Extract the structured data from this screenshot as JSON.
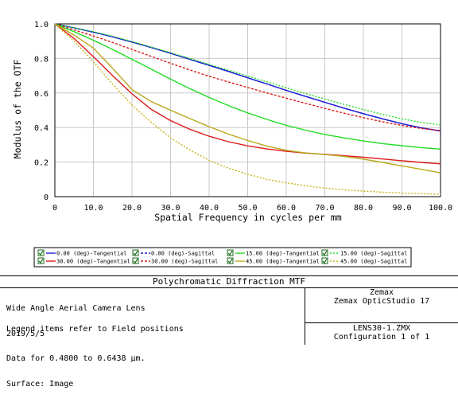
{
  "chart_data": {
    "type": "line",
    "title": "",
    "xlabel": "Spatial Frequency in cycles per mm",
    "ylabel": "Modulus of the OTF",
    "xlim": [
      0,
      100
    ],
    "ylim": [
      0,
      1
    ],
    "x_ticks": [
      "0",
      "10.0",
      "20.0",
      "30.0",
      "40.0",
      "50.0",
      "60.0",
      "70.0",
      "80.0",
      "90.0",
      "100.0"
    ],
    "y_ticks": [
      "0",
      "0.2",
      "0.4",
      "0.6",
      "0.8",
      "1.0"
    ],
    "grid": true,
    "legend_position": "bottom",
    "x": [
      0,
      5,
      10,
      15,
      20,
      25,
      30,
      35,
      40,
      45,
      50,
      55,
      60,
      65,
      70,
      75,
      80,
      85,
      90,
      95,
      100
    ],
    "series": [
      {
        "name": "0.00 (deg)-Tangential",
        "color": "#1a1ad8",
        "dash": "solid",
        "values": [
          1.0,
          0.977,
          0.952,
          0.925,
          0.895,
          0.863,
          0.83,
          0.795,
          0.76,
          0.725,
          0.688,
          0.652,
          0.615,
          0.58,
          0.546,
          0.512,
          0.48,
          0.45,
          0.422,
          0.398,
          0.38
        ]
      },
      {
        "name": "0.00 (deg)-Sagittal",
        "color": "#1a1ad8",
        "dash": "dashed",
        "values": [
          1.0,
          0.977,
          0.952,
          0.925,
          0.895,
          0.863,
          0.83,
          0.795,
          0.76,
          0.725,
          0.688,
          0.652,
          0.615,
          0.58,
          0.546,
          0.512,
          0.48,
          0.45,
          0.422,
          0.398,
          0.38
        ]
      },
      {
        "name": "15.00 (deg)-Tangential",
        "color": "#22dd22",
        "dash": "solid",
        "values": [
          1.0,
          0.955,
          0.905,
          0.852,
          0.795,
          0.738,
          0.68,
          0.625,
          0.574,
          0.527,
          0.485,
          0.447,
          0.413,
          0.385,
          0.36,
          0.34,
          0.322,
          0.307,
          0.295,
          0.284,
          0.275
        ]
      },
      {
        "name": "15.00 (deg)-Sagittal",
        "color": "#22dd22",
        "dash": "dotted",
        "values": [
          1.0,
          0.978,
          0.955,
          0.928,
          0.898,
          0.866,
          0.833,
          0.8,
          0.766,
          0.732,
          0.698,
          0.664,
          0.63,
          0.597,
          0.565,
          0.534,
          0.504,
          0.476,
          0.45,
          0.43,
          0.415
        ]
      },
      {
        "name": "30.00 (deg)-Tangential",
        "color": "#dd1a1a",
        "dash": "solid",
        "values": [
          1.0,
          0.915,
          0.81,
          0.7,
          0.595,
          0.505,
          0.44,
          0.39,
          0.35,
          0.318,
          0.294,
          0.276,
          0.262,
          0.252,
          0.245,
          0.237,
          0.228,
          0.218,
          0.208,
          0.198,
          0.19
        ]
      },
      {
        "name": "30.00 (deg)-Sagittal",
        "color": "#dd1a1a",
        "dash": "dashed",
        "values": [
          1.0,
          0.965,
          0.93,
          0.892,
          0.852,
          0.812,
          0.772,
          0.733,
          0.697,
          0.664,
          0.632,
          0.6,
          0.57,
          0.54,
          0.511,
          0.483,
          0.457,
          0.433,
          0.412,
          0.395,
          0.382
        ]
      },
      {
        "name": "45.00 (deg)-Tangential",
        "color": "#b8a818",
        "dash": "solid",
        "values": [
          1.0,
          0.935,
          0.86,
          0.742,
          0.62,
          0.55,
          0.5,
          0.452,
          0.405,
          0.362,
          0.325,
          0.292,
          0.268,
          0.253,
          0.244,
          0.233,
          0.217,
          0.198,
          0.178,
          0.158,
          0.138
        ]
      },
      {
        "name": "45.00 (deg)-Sagittal",
        "color": "#c8b418",
        "dash": "dotted",
        "values": [
          1.0,
          0.9,
          0.78,
          0.65,
          0.53,
          0.43,
          0.34,
          0.27,
          0.21,
          0.165,
          0.13,
          0.1,
          0.08,
          0.063,
          0.05,
          0.04,
          0.032,
          0.026,
          0.021,
          0.017,
          0.014
        ]
      }
    ]
  },
  "info": {
    "title": "Polychromatic Diffraction MTF",
    "lens_name": "Wide Angle Aerial Camera Lens",
    "date": "2019/5/5",
    "wavelength": "Data for 0.4800 to 0.6438 µm.",
    "surface": "Surface: Image",
    "legend_note": "Legend items refer to Field positions",
    "company": "Zemax",
    "software": "Zemax OpticStudio 17",
    "file": "LENS30-1.ZMX",
    "configuration": "Configuration 1 of 1"
  }
}
